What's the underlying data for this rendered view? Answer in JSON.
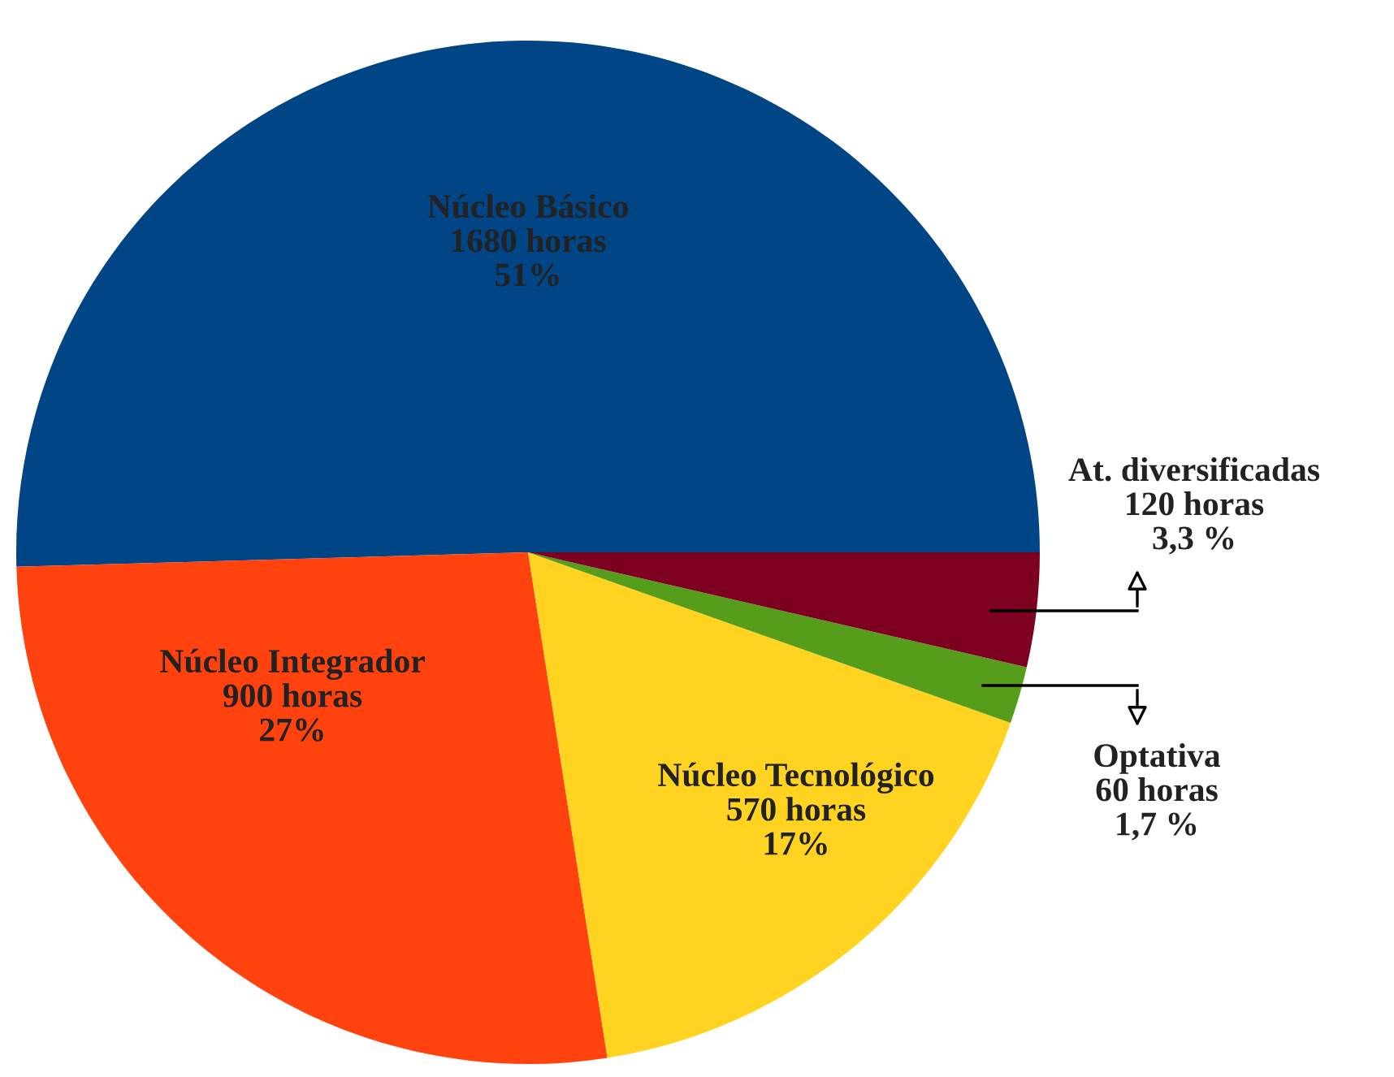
{
  "chart_data": {
    "type": "pie",
    "categories": [
      "Núcleo Básico",
      "Núcleo Integrador",
      "Núcleo Tecnológico",
      "Optativa",
      "At. diversificadas"
    ],
    "values": [
      1680,
      900,
      570,
      60,
      120
    ],
    "value_labels": [
      "1680 horas\n51%",
      "900 horas\n27%",
      "570 horas\n17%",
      "60 horas\n1,7 %",
      "120 horas\n3,3 %"
    ],
    "colors": [
      "#004586",
      "#ff420e",
      "#ffd320",
      "#579d1c",
      "#7e0021"
    ],
    "legend": false
  }
}
